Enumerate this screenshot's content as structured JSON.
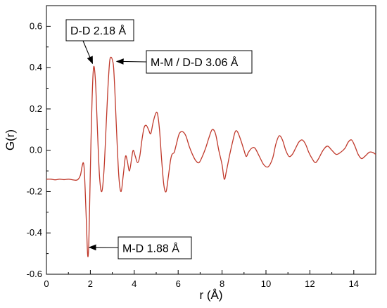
{
  "chart_data": {
    "type": "line",
    "xlabel": "r (Å)",
    "ylabel": "G(r)",
    "xlim": [
      0,
      15
    ],
    "ylim": [
      -0.6,
      0.7
    ],
    "x_ticks": [
      {
        "value": 0,
        "label": "0"
      },
      {
        "value": 2,
        "label": "2"
      },
      {
        "value": 4,
        "label": "4"
      },
      {
        "value": 6,
        "label": "6"
      },
      {
        "value": 8,
        "label": "8"
      },
      {
        "value": 10,
        "label": "10"
      },
      {
        "value": 12,
        "label": "12"
      },
      {
        "value": 14,
        "label": "14"
      }
    ],
    "y_ticks": [
      {
        "value": -0.6,
        "label": "-0.6"
      },
      {
        "value": -0.4,
        "label": "-0.4"
      },
      {
        "value": -0.2,
        "label": "-0.2"
      },
      {
        "value": 0.0,
        "label": "0.0"
      },
      {
        "value": 0.2,
        "label": "0.2"
      },
      {
        "value": 0.4,
        "label": "0.4"
      },
      {
        "value": 0.6,
        "label": "0.6"
      }
    ],
    "grid": false,
    "line_color": "#c0392b",
    "series": [
      {
        "x": [
          0.0,
          0.2,
          0.4,
          0.6,
          0.8,
          1.0,
          1.2,
          1.35,
          1.45,
          1.55,
          1.62,
          1.68,
          1.72,
          1.76,
          1.82,
          1.88,
          1.93,
          1.98,
          2.03,
          2.08,
          2.13,
          2.18,
          2.25,
          2.33,
          2.42,
          2.52,
          2.62,
          2.72,
          2.8,
          2.88,
          2.95,
          3.02,
          3.06,
          3.12,
          3.2,
          3.3,
          3.4,
          3.5,
          3.6,
          3.68,
          3.78,
          3.88,
          3.95,
          4.05,
          4.15,
          4.25,
          4.35,
          4.45,
          4.55,
          4.65,
          4.75,
          4.85,
          4.95,
          5.05,
          5.15,
          5.25,
          5.35,
          5.45,
          5.55,
          5.65,
          5.72,
          5.82,
          5.92,
          6.05,
          6.2,
          6.35,
          6.5,
          6.65,
          6.8,
          6.95,
          7.1,
          7.25,
          7.4,
          7.55,
          7.7,
          7.85,
          8.0,
          8.1,
          8.2,
          8.35,
          8.5,
          8.6,
          8.7,
          8.85,
          9.0,
          9.1,
          9.2,
          9.35,
          9.5,
          9.7,
          9.9,
          10.1,
          10.3,
          10.45,
          10.6,
          10.75,
          10.9,
          11.05,
          11.2,
          11.35,
          11.5,
          11.65,
          11.8,
          11.95,
          12.1,
          12.25,
          12.4,
          12.6,
          12.8,
          13.0,
          13.2,
          13.4,
          13.6,
          13.75,
          13.9,
          14.05,
          14.2,
          14.35,
          14.5,
          14.7,
          14.85,
          15.0
        ],
        "y": [
          -0.14,
          -0.14,
          -0.143,
          -0.14,
          -0.142,
          -0.14,
          -0.143,
          -0.145,
          -0.14,
          -0.12,
          -0.08,
          -0.06,
          -0.09,
          -0.18,
          -0.35,
          -0.51,
          -0.45,
          -0.2,
          0.05,
          0.25,
          0.38,
          0.4,
          0.3,
          0.08,
          -0.13,
          -0.2,
          -0.1,
          0.12,
          0.3,
          0.43,
          0.45,
          0.43,
          0.4,
          0.28,
          0.08,
          -0.13,
          -0.2,
          -0.12,
          -0.03,
          -0.05,
          -0.1,
          -0.04,
          0.0,
          -0.03,
          -0.06,
          -0.03,
          0.05,
          0.11,
          0.12,
          0.1,
          0.08,
          0.13,
          0.17,
          0.18,
          0.1,
          -0.05,
          -0.17,
          -0.2,
          -0.13,
          -0.05,
          -0.02,
          -0.01,
          0.03,
          0.08,
          0.09,
          0.07,
          0.02,
          -0.02,
          -0.05,
          -0.06,
          -0.03,
          0.01,
          0.06,
          0.1,
          0.08,
          0.0,
          -0.07,
          -0.14,
          -0.1,
          -0.02,
          0.05,
          0.09,
          0.09,
          0.05,
          0.0,
          -0.03,
          -0.01,
          0.01,
          0.01,
          -0.03,
          -0.07,
          -0.08,
          -0.04,
          0.03,
          0.07,
          0.05,
          0.0,
          -0.03,
          -0.02,
          0.01,
          0.04,
          0.05,
          0.03,
          -0.01,
          -0.04,
          -0.06,
          -0.04,
          0.0,
          0.02,
          0.0,
          -0.02,
          -0.01,
          0.01,
          0.04,
          0.05,
          0.02,
          -0.02,
          -0.04,
          -0.03,
          -0.01,
          -0.01,
          -0.02
        ]
      }
    ],
    "annotations": [
      {
        "text": "D-D 2.18 Å",
        "box": "above-left",
        "arrow_to": [
          2.1,
          0.42
        ]
      },
      {
        "text": "M-M / D-D 3.06 Å",
        "box": "right",
        "arrow_to": [
          3.2,
          0.43
        ]
      },
      {
        "text": "M-D 1.88 Å",
        "box": "right",
        "arrow_to": [
          1.95,
          -0.47
        ]
      }
    ]
  }
}
